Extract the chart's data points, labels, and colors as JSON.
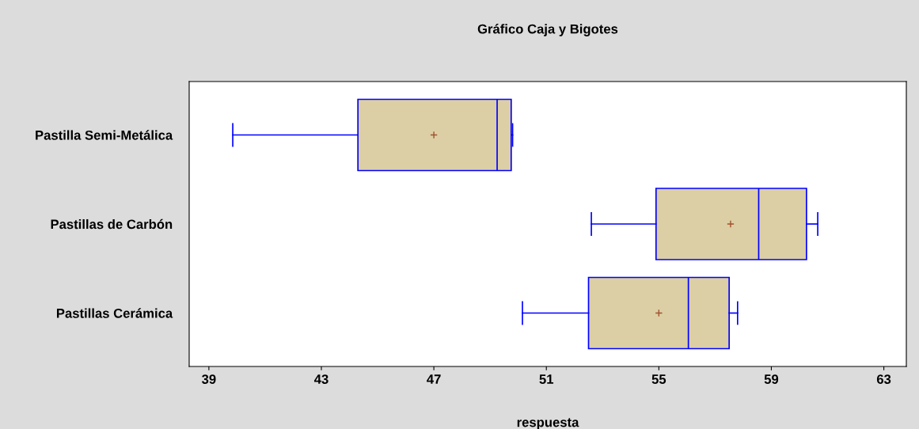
{
  "chart_data": {
    "type": "box",
    "orientation": "horizontal",
    "title": "Gráfico Caja y Bigotes",
    "xlabel": "respuesta",
    "categories": [
      "Pastilla Semi-Metálica",
      "Pastillas de Carbón",
      "Pastillas Cerámica"
    ],
    "boxes": [
      {
        "low": 39.85,
        "q1": 44.3,
        "median": 49.25,
        "q3": 49.75,
        "high": 49.8,
        "mean": 47.0
      },
      {
        "low": 52.6,
        "q1": 54.9,
        "median": 58.55,
        "q3": 60.25,
        "high": 60.65,
        "mean": 57.55
      },
      {
        "low": 50.15,
        "q1": 52.5,
        "median": 56.05,
        "q3": 57.5,
        "high": 57.8,
        "mean": 55.0
      }
    ],
    "color": "#dccfa5",
    "xlim": [
      38.3,
      63.8
    ],
    "xticks": [
      39,
      43,
      47,
      51,
      55,
      59,
      63
    ],
    "grid": false,
    "legend": false
  }
}
